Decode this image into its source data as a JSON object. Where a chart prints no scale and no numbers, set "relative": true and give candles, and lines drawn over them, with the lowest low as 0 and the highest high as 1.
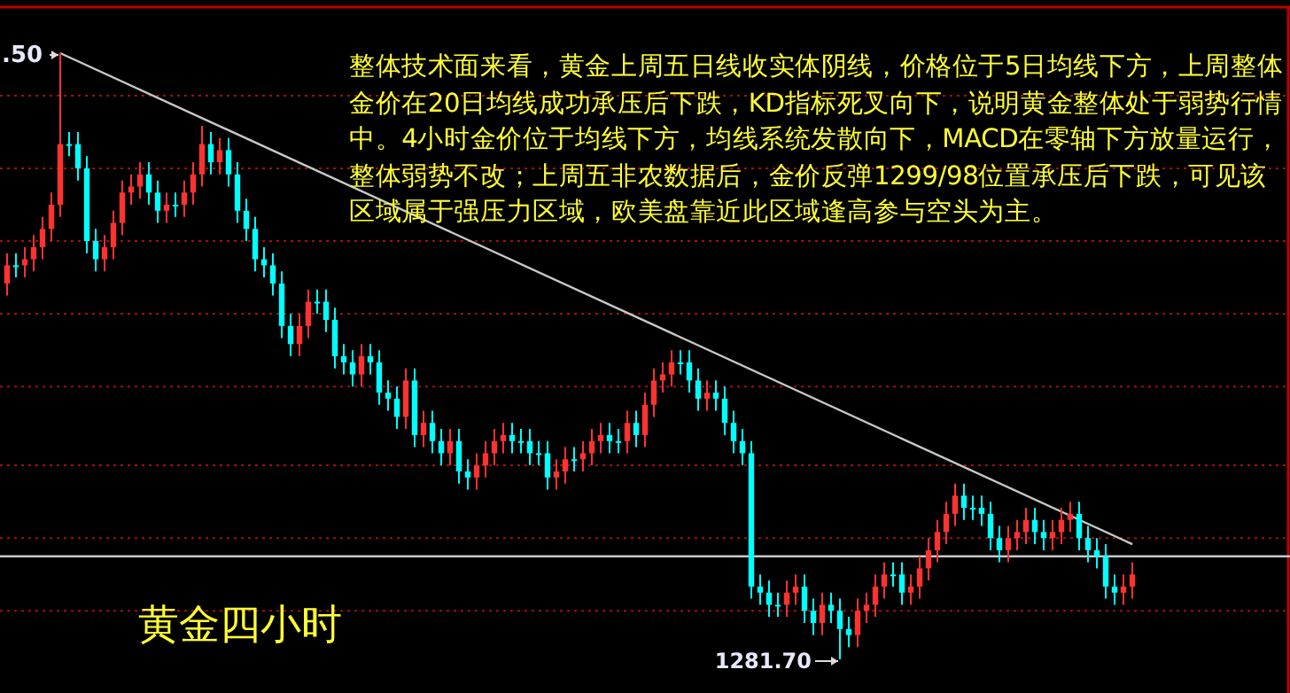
{
  "chart_data": {
    "type": "candlestick",
    "title": "黄金四小时",
    "relative": true,
    "categories": [
      null,
      null,
      null,
      null,
      null,
      null,
      null,
      null,
      null,
      null,
      null,
      null,
      null,
      null,
      null,
      null,
      null,
      null,
      null,
      null,
      null,
      null,
      null,
      null,
      null,
      null,
      null,
      null,
      null,
      null,
      null,
      null,
      null,
      null,
      null,
      null,
      null,
      null,
      null,
      null,
      null,
      null,
      null,
      null,
      null,
      null,
      null,
      null,
      null,
      null,
      null,
      null,
      null,
      null,
      null,
      null,
      null,
      null,
      null,
      null,
      null,
      null,
      null,
      null,
      null,
      null,
      null,
      null,
      null,
      null,
      null,
      null,
      null,
      null,
      null,
      null,
      null,
      null,
      null,
      null,
      null,
      null,
      null,
      null,
      null,
      null,
      null,
      null,
      null,
      null,
      null,
      null,
      null,
      null,
      null,
      null,
      null,
      null,
      null,
      null,
      null,
      null,
      null,
      null,
      null,
      null,
      null,
      null,
      null,
      null,
      null,
      null,
      null,
      null,
      null,
      null,
      null,
      null,
      null,
      null,
      null,
      null,
      null,
      null,
      null,
      null,
      null,
      null
    ],
    "ohlc": [
      [
        0.62,
        0.67,
        0.6,
        0.65
      ],
      [
        0.65,
        0.67,
        0.63,
        0.65
      ],
      [
        0.65,
        0.68,
        0.63,
        0.66
      ],
      [
        0.66,
        0.7,
        0.64,
        0.68
      ],
      [
        0.68,
        0.73,
        0.66,
        0.71
      ],
      [
        0.71,
        0.77,
        0.69,
        0.75
      ],
      [
        0.75,
        1.0,
        0.73,
        0.85
      ],
      [
        0.85,
        0.87,
        0.83,
        0.85
      ],
      [
        0.85,
        0.87,
        0.79,
        0.81
      ],
      [
        0.81,
        0.83,
        0.67,
        0.69
      ],
      [
        0.69,
        0.71,
        0.64,
        0.66
      ],
      [
        0.66,
        0.7,
        0.64,
        0.68
      ],
      [
        0.68,
        0.74,
        0.66,
        0.72
      ],
      [
        0.72,
        0.79,
        0.7,
        0.77
      ],
      [
        0.77,
        0.8,
        0.75,
        0.78
      ],
      [
        0.78,
        0.82,
        0.76,
        0.8
      ],
      [
        0.8,
        0.82,
        0.75,
        0.77
      ],
      [
        0.77,
        0.79,
        0.72,
        0.74
      ],
      [
        0.74,
        0.77,
        0.72,
        0.75
      ],
      [
        0.75,
        0.77,
        0.73,
        0.75
      ],
      [
        0.75,
        0.79,
        0.73,
        0.77
      ],
      [
        0.77,
        0.82,
        0.75,
        0.8
      ],
      [
        0.8,
        0.88,
        0.78,
        0.85
      ],
      [
        0.85,
        0.87,
        0.8,
        0.82
      ],
      [
        0.82,
        0.86,
        0.8,
        0.84
      ],
      [
        0.84,
        0.86,
        0.78,
        0.8
      ],
      [
        0.8,
        0.82,
        0.72,
        0.74
      ],
      [
        0.74,
        0.76,
        0.69,
        0.71
      ],
      [
        0.71,
        0.73,
        0.64,
        0.66
      ],
      [
        0.66,
        0.68,
        0.63,
        0.65
      ],
      [
        0.65,
        0.67,
        0.6,
        0.62
      ],
      [
        0.62,
        0.64,
        0.53,
        0.55
      ],
      [
        0.55,
        0.57,
        0.5,
        0.52
      ],
      [
        0.52,
        0.57,
        0.5,
        0.55
      ],
      [
        0.55,
        0.61,
        0.53,
        0.59
      ],
      [
        0.59,
        0.61,
        0.57,
        0.59
      ],
      [
        0.59,
        0.61,
        0.54,
        0.56
      ],
      [
        0.56,
        0.58,
        0.48,
        0.5
      ],
      [
        0.5,
        0.52,
        0.47,
        0.49
      ],
      [
        0.49,
        0.51,
        0.45,
        0.47
      ],
      [
        0.47,
        0.52,
        0.45,
        0.5
      ],
      [
        0.5,
        0.52,
        0.47,
        0.49
      ],
      [
        0.49,
        0.51,
        0.42,
        0.44
      ],
      [
        0.44,
        0.46,
        0.41,
        0.43
      ],
      [
        0.43,
        0.45,
        0.38,
        0.4
      ],
      [
        0.4,
        0.48,
        0.38,
        0.46
      ],
      [
        0.46,
        0.48,
        0.35,
        0.37
      ],
      [
        0.37,
        0.41,
        0.35,
        0.39
      ],
      [
        0.39,
        0.41,
        0.34,
        0.36
      ],
      [
        0.36,
        0.38,
        0.32,
        0.34
      ],
      [
        0.34,
        0.38,
        0.32,
        0.36
      ],
      [
        0.36,
        0.38,
        0.29,
        0.31
      ],
      [
        0.31,
        0.33,
        0.28,
        0.3
      ],
      [
        0.3,
        0.34,
        0.28,
        0.32
      ],
      [
        0.32,
        0.36,
        0.3,
        0.34
      ],
      [
        0.34,
        0.38,
        0.32,
        0.36
      ],
      [
        0.36,
        0.39,
        0.34,
        0.37
      ],
      [
        0.37,
        0.39,
        0.34,
        0.36
      ],
      [
        0.36,
        0.38,
        0.34,
        0.36
      ],
      [
        0.36,
        0.38,
        0.32,
        0.34
      ],
      [
        0.34,
        0.36,
        0.32,
        0.34
      ],
      [
        0.34,
        0.36,
        0.28,
        0.3
      ],
      [
        0.3,
        0.33,
        0.28,
        0.31
      ],
      [
        0.31,
        0.35,
        0.29,
        0.33
      ],
      [
        0.33,
        0.35,
        0.31,
        0.33
      ],
      [
        0.33,
        0.36,
        0.31,
        0.34
      ],
      [
        0.34,
        0.38,
        0.32,
        0.36
      ],
      [
        0.36,
        0.39,
        0.34,
        0.37
      ],
      [
        0.37,
        0.39,
        0.34,
        0.36
      ],
      [
        0.36,
        0.38,
        0.34,
        0.36
      ],
      [
        0.36,
        0.41,
        0.34,
        0.39
      ],
      [
        0.39,
        0.41,
        0.35,
        0.37
      ],
      [
        0.37,
        0.44,
        0.35,
        0.42
      ],
      [
        0.42,
        0.48,
        0.4,
        0.46
      ],
      [
        0.46,
        0.49,
        0.44,
        0.47
      ],
      [
        0.47,
        0.51,
        0.45,
        0.49
      ],
      [
        0.49,
        0.51,
        0.47,
        0.49
      ],
      [
        0.49,
        0.51,
        0.44,
        0.46
      ],
      [
        0.46,
        0.48,
        0.41,
        0.43
      ],
      [
        0.43,
        0.46,
        0.41,
        0.44
      ],
      [
        0.44,
        0.46,
        0.41,
        0.43
      ],
      [
        0.43,
        0.45,
        0.37,
        0.39
      ],
      [
        0.39,
        0.41,
        0.34,
        0.36
      ],
      [
        0.36,
        0.38,
        0.32,
        0.34
      ],
      [
        0.34,
        0.36,
        0.1,
        0.12
      ],
      [
        0.12,
        0.14,
        0.09,
        0.11
      ],
      [
        0.11,
        0.13,
        0.07,
        0.09
      ],
      [
        0.09,
        0.11,
        0.07,
        0.09
      ],
      [
        0.09,
        0.13,
        0.07,
        0.11
      ],
      [
        0.11,
        0.14,
        0.09,
        0.12
      ],
      [
        0.12,
        0.14,
        0.06,
        0.08
      ],
      [
        0.08,
        0.1,
        0.04,
        0.06
      ],
      [
        0.06,
        0.11,
        0.04,
        0.09
      ],
      [
        0.09,
        0.11,
        0.06,
        0.08
      ],
      [
        0.08,
        0.1,
        0.0,
        0.05
      ],
      [
        0.05,
        0.07,
        0.02,
        0.04
      ],
      [
        0.04,
        0.1,
        0.02,
        0.08
      ],
      [
        0.08,
        0.11,
        0.06,
        0.09
      ],
      [
        0.09,
        0.14,
        0.07,
        0.12
      ],
      [
        0.12,
        0.16,
        0.1,
        0.14
      ],
      [
        0.14,
        0.16,
        0.12,
        0.14
      ],
      [
        0.14,
        0.16,
        0.09,
        0.11
      ],
      [
        0.11,
        0.14,
        0.09,
        0.12
      ],
      [
        0.12,
        0.17,
        0.1,
        0.15
      ],
      [
        0.15,
        0.2,
        0.13,
        0.18
      ],
      [
        0.18,
        0.23,
        0.16,
        0.21
      ],
      [
        0.21,
        0.26,
        0.19,
        0.24
      ],
      [
        0.24,
        0.29,
        0.22,
        0.27
      ],
      [
        0.27,
        0.29,
        0.23,
        0.25
      ],
      [
        0.25,
        0.27,
        0.23,
        0.25
      ],
      [
        0.25,
        0.27,
        0.22,
        0.24
      ],
      [
        0.24,
        0.26,
        0.18,
        0.2
      ],
      [
        0.2,
        0.22,
        0.16,
        0.18
      ],
      [
        0.18,
        0.22,
        0.16,
        0.2
      ],
      [
        0.2,
        0.23,
        0.18,
        0.21
      ],
      [
        0.21,
        0.25,
        0.19,
        0.23
      ],
      [
        0.23,
        0.25,
        0.19,
        0.21
      ],
      [
        0.21,
        0.23,
        0.18,
        0.2
      ],
      [
        0.2,
        0.23,
        0.18,
        0.21
      ],
      [
        0.21,
        0.25,
        0.19,
        0.23
      ],
      [
        0.23,
        0.26,
        0.21,
        0.24
      ],
      [
        0.24,
        0.26,
        0.18,
        0.2
      ],
      [
        0.2,
        0.22,
        0.16,
        0.18
      ],
      [
        0.18,
        0.2,
        0.15,
        0.17
      ],
      [
        0.17,
        0.19,
        0.1,
        0.12
      ],
      [
        0.12,
        0.14,
        0.09,
        0.11
      ],
      [
        0.11,
        0.14,
        0.09,
        0.12
      ],
      [
        0.12,
        0.16,
        0.1,
        0.14
      ]
    ],
    "colors": [
      "#ff3232",
      "#00ffff",
      "#ff3232",
      "#ff3232",
      "#ff3232",
      "#ff3232",
      "#ff3232",
      "#00ffff",
      "#00ffff",
      "#00ffff",
      "#00ffff",
      "#ff3232",
      "#ff3232",
      "#ff3232",
      "#ff3232",
      "#ff3232",
      "#00ffff",
      "#00ffff",
      "#ff3232",
      "#00ffff",
      "#ff3232",
      "#ff3232",
      "#ff3232",
      "#00ffff",
      "#ff3232",
      "#00ffff",
      "#00ffff",
      "#00ffff",
      "#00ffff",
      "#00ffff",
      "#00ffff",
      "#00ffff",
      "#00ffff",
      "#ff3232",
      "#ff3232",
      "#00ffff",
      "#00ffff",
      "#00ffff",
      "#00ffff",
      "#00ffff",
      "#ff3232",
      "#00ffff",
      "#00ffff",
      "#00ffff",
      "#00ffff",
      "#ff3232",
      "#00ffff",
      "#ff3232",
      "#00ffff",
      "#00ffff",
      "#ff3232",
      "#00ffff",
      "#00ffff",
      "#ff3232",
      "#ff3232",
      "#ff3232",
      "#ff3232",
      "#00ffff",
      "#00ffff",
      "#00ffff",
      "#00ffff",
      "#00ffff",
      "#ff3232",
      "#ff3232",
      "#00ffff",
      "#ff3232",
      "#ff3232",
      "#ff3232",
      "#00ffff",
      "#00ffff",
      "#ff3232",
      "#00ffff",
      "#ff3232",
      "#ff3232",
      "#ff3232",
      "#ff3232",
      "#00ffff",
      "#00ffff",
      "#00ffff",
      "#ff3232",
      "#00ffff",
      "#00ffff",
      "#00ffff",
      "#00ffff",
      "#00ffff",
      "#00ffff",
      "#00ffff",
      "#00ffff",
      "#ff3232",
      "#ff3232",
      "#00ffff",
      "#00ffff",
      "#ff3232",
      "#00ffff",
      "#00ffff",
      "#00ffff",
      "#ff3232",
      "#ff3232",
      "#ff3232",
      "#ff3232",
      "#00ffff",
      "#00ffff",
      "#ff3232",
      "#ff3232",
      "#ff3232",
      "#ff3232",
      "#ff3232",
      "#ff3232",
      "#00ffff",
      "#00ffff",
      "#00ffff",
      "#00ffff",
      "#00ffff",
      "#ff3232",
      "#ff3232",
      "#ff3232",
      "#00ffff",
      "#00ffff",
      "#ff3232",
      "#ff3232",
      "#ff3232",
      "#00ffff",
      "#00ffff",
      "#00ffff",
      "#00ffff",
      "#00ffff",
      "#ff3232",
      "#ff3232"
    ],
    "series": [
      {
        "type": "line",
        "values": [
          null,
          null,
          null,
          null,
          null,
          null,
          1.0,
          null,
          null,
          null,
          null,
          null,
          null,
          null,
          null,
          null,
          null,
          null,
          null,
          null,
          null,
          null,
          null,
          null,
          null,
          null,
          null,
          null,
          null,
          null,
          null,
          null,
          null,
          null,
          null,
          null,
          null,
          null,
          null,
          null,
          null,
          null,
          null,
          null,
          null,
          null,
          null,
          null,
          null,
          null,
          null,
          null,
          null,
          null,
          null,
          null,
          null,
          null,
          null,
          null,
          null,
          null,
          null,
          null,
          null,
          null,
          null,
          null,
          null,
          null,
          null,
          null,
          null,
          null,
          null,
          null,
          null,
          null,
          null,
          null,
          null,
          null,
          null,
          null,
          null,
          null,
          null,
          null,
          null,
          null,
          null,
          null,
          null,
          null,
          null,
          null,
          null,
          null,
          null,
          null,
          null,
          null,
          null,
          null,
          null,
          null,
          null,
          null,
          null,
          null,
          null,
          null,
          null,
          null,
          null,
          null,
          null,
          null,
          null,
          null,
          null,
          null,
          null,
          null,
          null,
          null,
          null,
          0.19
        ],
        "color": "#c8c8c8"
      }
    ],
    "ref_lines": [
      {
        "axis": "y",
        "value": 0.17,
        "color": "#c8c8c8",
        "line_style": "solid"
      },
      {
        "axis": "y",
        "value": 0.93,
        "color": "#a01010",
        "line_style": "dotted"
      },
      {
        "axis": "y",
        "value": 0.81,
        "color": "#a01010",
        "line_style": "dotted"
      },
      {
        "axis": "y",
        "value": 0.69,
        "color": "#a01010",
        "line_style": "dotted"
      },
      {
        "axis": "y",
        "value": 0.57,
        "color": "#a01010",
        "line_style": "dotted"
      },
      {
        "axis": "y",
        "value": 0.45,
        "color": "#a01010",
        "line_style": "dotted"
      },
      {
        "axis": "y",
        "value": 0.32,
        "color": "#a01010",
        "line_style": "dotted"
      },
      {
        "axis": "y",
        "value": 0.2,
        "color": "#a01010",
        "line_style": "dotted"
      },
      {
        "axis": "y",
        "value": 0.08,
        "color": "#a01010",
        "line_style": "dotted"
      }
    ],
    "annotations": [
      "整体技术面来看，黄金上周五日线收实体阴线，价格位于5日均线下方，上周整体金价在20日均线成功承压后下跌，KD指标死叉向下，说明黄金整体处于弱势行情中。4小时金价位于均线下方，均线系统发散向下，MACD在零轴下方放量运行，整体弱势不改；上周五非农数据后，金价反弹1299/98位置承压后下跌，可见该区域属于强压力区域，欧美盘靠近此区域逢高参与空头为主。",
      ".50",
      "1281.70"
    ]
  }
}
